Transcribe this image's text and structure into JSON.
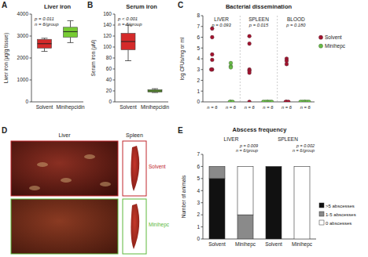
{
  "chart_data": [
    {
      "type": "box",
      "panel": "A",
      "title": "Liver iron",
      "ylabel": "Liver iron (µg/g tissue)",
      "categories": [
        "Solvent",
        "Minihepcidin"
      ],
      "stats": [
        {
          "min": 2300,
          "q1": 2450,
          "median": 2650,
          "q3": 2850,
          "max": 2900
        },
        {
          "min": 2700,
          "q1": 2950,
          "median": 3200,
          "q3": 3400,
          "max": 3700
        }
      ],
      "colors": [
        "#d42a2a",
        "#77cc33"
      ],
      "ylim": [
        0,
        4000
      ],
      "yticks": [
        0,
        1000,
        2000,
        3000,
        4000
      ],
      "annotations": [
        "p = 0.011",
        "n = 6/group"
      ]
    },
    {
      "type": "box",
      "panel": "B",
      "title": "Serum iron",
      "ylabel": "Serum iron (µM)",
      "categories": [
        "Solvent",
        "Minihepcidin"
      ],
      "stats": [
        {
          "min": 75,
          "q1": 95,
          "median": 110,
          "q3": 125,
          "max": 140
        },
        {
          "min": 17,
          "q1": 18,
          "median": 20,
          "q3": 22,
          "max": 24
        }
      ],
      "colors": [
        "#d42a2a",
        "#77cc33"
      ],
      "ylim": [
        0,
        160
      ],
      "yticks": [
        0,
        20,
        40,
        60,
        80,
        100,
        120,
        140,
        160
      ],
      "annotations": [
        "p < 0.001",
        "n = 6/group"
      ]
    },
    {
      "type": "scatter",
      "panel": "C",
      "title": "Bacterial dissemination",
      "ylabel": "log CFUs/mg or ml",
      "categories": [
        "LIVER",
        "SPLEEN",
        "BLOOD"
      ],
      "series": [
        {
          "name": "Solvent",
          "color": "#a3122e",
          "values": [
            [
              6.8,
              6.0,
              4.4,
              3.9,
              3.0,
              3.0
            ],
            [
              6.1,
              5.4,
              3.0,
              2.9,
              2.7,
              0
            ],
            [
              4.0,
              3.8,
              3.5,
              0,
              0,
              0
            ]
          ]
        },
        {
          "name": "Minihepc",
          "color": "#66bb44",
          "values": [
            [
              3.6,
              3.3,
              3.2,
              0,
              0,
              0
            ],
            [
              0,
              0,
              0,
              0,
              0,
              0
            ],
            [
              0,
              0,
              0,
              0,
              0,
              0
            ]
          ]
        }
      ],
      "p_values": [
        "p = 0.093",
        "p = 0.015",
        "p = 0.180"
      ],
      "n_labels": [
        [
          "n = 6",
          "n = 6"
        ],
        [
          "n = 6",
          "n = 6"
        ],
        [
          "n = 6",
          "n = 6"
        ]
      ],
      "ylim": [
        0,
        8
      ],
      "yticks": [
        0,
        1,
        2,
        3,
        4,
        5,
        6,
        7,
        8
      ],
      "legend": "right",
      "marker": "circle"
    },
    {
      "type": "bar",
      "stacked": true,
      "panel": "E",
      "title": "Abscess frequency",
      "ylabel": "Number of animals",
      "groups": [
        "LIVER",
        "SPLEEN"
      ],
      "categories": [
        "Solvent",
        "Minihepc",
        "Solvent",
        "Minihepc"
      ],
      "series": [
        {
          "name": ">5 abscesses",
          "color": "#111111",
          "values": [
            5,
            0,
            6,
            0
          ]
        },
        {
          "name": "1-5 abscesses",
          "color": "#8a8a8a",
          "values": [
            1,
            2,
            0,
            0
          ]
        },
        {
          "name": "0 abscesses",
          "color": "#ffffff",
          "values": [
            0,
            4,
            0,
            6
          ]
        }
      ],
      "annotations": [
        [
          "p = 0.009",
          "n = 6/group"
        ],
        [
          "p = 0.002",
          "n = 6/group"
        ]
      ],
      "ylim": [
        0,
        7
      ],
      "yticks": [
        0,
        1,
        2,
        3,
        4,
        5,
        6,
        7
      ],
      "legend": "right"
    }
  ],
  "photos": {
    "panel": "D",
    "columns": [
      "Liver",
      "Spleen"
    ],
    "rows": [
      "Solvent",
      "Minihepc"
    ],
    "row_colors": [
      "#c0262c",
      "#5cb83a"
    ]
  }
}
